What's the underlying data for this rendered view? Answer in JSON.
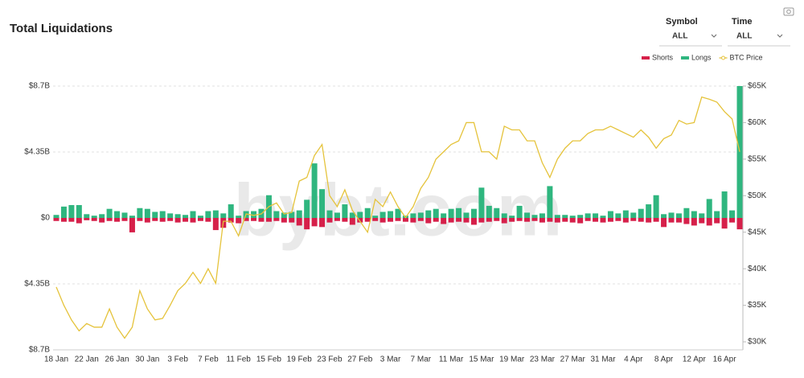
{
  "controls": {
    "symbol": {
      "label": "Symbol",
      "value": "ALL"
    },
    "time": {
      "label": "Time",
      "value": "ALL"
    }
  },
  "watermark": "bybt.com",
  "chart_data": {
    "type": "bar",
    "title": "Total Liquidations",
    "categories": [
      "18 Jan",
      null,
      null,
      null,
      "22 Jan",
      null,
      null,
      null,
      "26 Jan",
      null,
      null,
      null,
      "30 Jan",
      null,
      null,
      null,
      "3 Feb",
      null,
      null,
      null,
      "7 Feb",
      null,
      null,
      null,
      "11 Feb",
      null,
      null,
      null,
      "15 Feb",
      null,
      null,
      null,
      "19 Feb",
      null,
      null,
      null,
      "23 Feb",
      null,
      null,
      null,
      "27 Feb",
      null,
      null,
      null,
      "3 Mar",
      null,
      null,
      null,
      "7 Mar",
      null,
      null,
      null,
      "11 Mar",
      null,
      null,
      null,
      "15 Mar",
      null,
      null,
      null,
      "19 Mar",
      null,
      null,
      null,
      "23 Mar",
      null,
      null,
      null,
      "27 Mar",
      null,
      null,
      null,
      "31 Mar",
      null,
      null,
      null,
      "4 Apr",
      null,
      null,
      null,
      "8 Apr",
      null,
      null,
      null,
      "12 Apr",
      null,
      null,
      null,
      "16 Apr",
      null,
      null
    ],
    "series": [
      {
        "name": "Shorts",
        "color": "#d6204a",
        "values": [
          -0.2,
          -0.25,
          -0.25,
          -0.35,
          -0.15,
          -0.2,
          -0.3,
          -0.2,
          -0.25,
          -0.2,
          -0.95,
          -0.2,
          -0.3,
          -0.2,
          -0.25,
          -0.2,
          -0.3,
          -0.25,
          -0.3,
          -0.2,
          -0.25,
          -0.8,
          -0.65,
          -0.3,
          -0.35,
          -0.2,
          -0.2,
          -0.25,
          -0.25,
          -0.2,
          -0.3,
          -0.3,
          -0.5,
          -0.75,
          -0.55,
          -0.6,
          -0.3,
          -0.2,
          -0.25,
          -0.45,
          -0.3,
          -0.25,
          -0.2,
          -0.3,
          -0.25,
          -0.2,
          -0.25,
          -0.3,
          -0.2,
          -0.35,
          -0.25,
          -0.4,
          -0.3,
          -0.25,
          -0.3,
          -0.45,
          -0.3,
          -0.25,
          -0.2,
          -0.35,
          -0.25,
          -0.2,
          -0.25,
          -0.2,
          -0.3,
          -0.25,
          -0.3,
          -0.25,
          -0.3,
          -0.35,
          -0.2,
          -0.25,
          -0.3,
          -0.25,
          -0.2,
          -0.3,
          -0.2,
          -0.25,
          -0.3,
          -0.25,
          -0.6,
          -0.3,
          -0.3,
          -0.4,
          -0.5,
          -0.35,
          -0.5,
          -0.35,
          -0.7,
          -0.3,
          -0.75
        ]
      },
      {
        "name": "Longs",
        "color": "#2fb67f",
        "values": [
          0.2,
          0.75,
          0.85,
          0.85,
          0.25,
          0.15,
          0.25,
          0.6,
          0.45,
          0.35,
          0.15,
          0.65,
          0.6,
          0.4,
          0.45,
          0.3,
          0.25,
          0.2,
          0.45,
          0.15,
          0.45,
          0.5,
          0.3,
          0.9,
          0.15,
          0.45,
          0.45,
          0.6,
          1.5,
          0.45,
          0.35,
          0.4,
          0.5,
          1.2,
          3.6,
          1.9,
          0.5,
          0.35,
          0.9,
          0.35,
          0.4,
          0.65,
          0.15,
          0.4,
          0.45,
          0.6,
          0.15,
          0.3,
          0.35,
          0.5,
          0.6,
          0.3,
          0.6,
          0.65,
          0.35,
          0.6,
          2.0,
          0.8,
          0.65,
          0.3,
          0.15,
          0.8,
          0.35,
          0.2,
          0.3,
          2.1,
          0.2,
          0.2,
          0.15,
          0.2,
          0.3,
          0.3,
          0.15,
          0.45,
          0.3,
          0.5,
          0.35,
          0.6,
          0.9,
          1.5,
          0.25,
          0.35,
          0.3,
          0.65,
          0.45,
          0.3,
          1.25,
          0.45,
          1.75,
          0.5,
          8.7
        ]
      },
      {
        "name": "BTC Price",
        "type": "line",
        "axis": "y2",
        "color": "#e5c33b",
        "values": [
          37500,
          35000,
          33000,
          31500,
          32500,
          32000,
          32000,
          34500,
          32000,
          30500,
          32000,
          37000,
          34500,
          33000,
          33200,
          35000,
          37000,
          38000,
          39500,
          38000,
          40000,
          38000,
          46500,
          46500,
          44500,
          47500,
          47300,
          47500,
          48500,
          49000,
          47500,
          47700,
          52000,
          52500,
          55500,
          57000,
          50000,
          48500,
          50800,
          48000,
          46500,
          45000,
          49500,
          48500,
          50500,
          48500,
          47000,
          48500,
          51000,
          52500,
          55000,
          56000,
          57000,
          57500,
          60000,
          60000,
          56000,
          56000,
          55000,
          59500,
          59000,
          59000,
          57500,
          57500,
          54500,
          52500,
          55000,
          56500,
          57500,
          57500,
          58500,
          59000,
          59000,
          59500,
          59000,
          58500,
          58000,
          59000,
          58000,
          56500,
          57800,
          58300,
          60300,
          59800,
          60000,
          63500,
          63200,
          62800,
          61500,
          60500,
          56000
        ]
      }
    ],
    "ylim": [
      -8.7,
      8.7
    ],
    "yticks": [
      {
        "value": -8.7,
        "label": "$8.7B"
      },
      {
        "value": -4.35,
        "label": "$4.35B"
      },
      {
        "value": 0,
        "label": "$0"
      },
      {
        "value": 4.35,
        "label": "$4.35B"
      },
      {
        "value": 8.7,
        "label": "$8.7B"
      }
    ],
    "y2lim": [
      28900,
      65000
    ],
    "y2ticks": [
      {
        "value": 30000,
        "label": "$30K"
      },
      {
        "value": 35000,
        "label": "$35K"
      },
      {
        "value": 40000,
        "label": "$40K"
      },
      {
        "value": 45000,
        "label": "$45K"
      },
      {
        "value": 50000,
        "label": "$50K"
      },
      {
        "value": 55000,
        "label": "$55K"
      },
      {
        "value": 60000,
        "label": "$60K"
      },
      {
        "value": 65000,
        "label": "$65K"
      }
    ],
    "grid": true,
    "legend": "top-right"
  }
}
